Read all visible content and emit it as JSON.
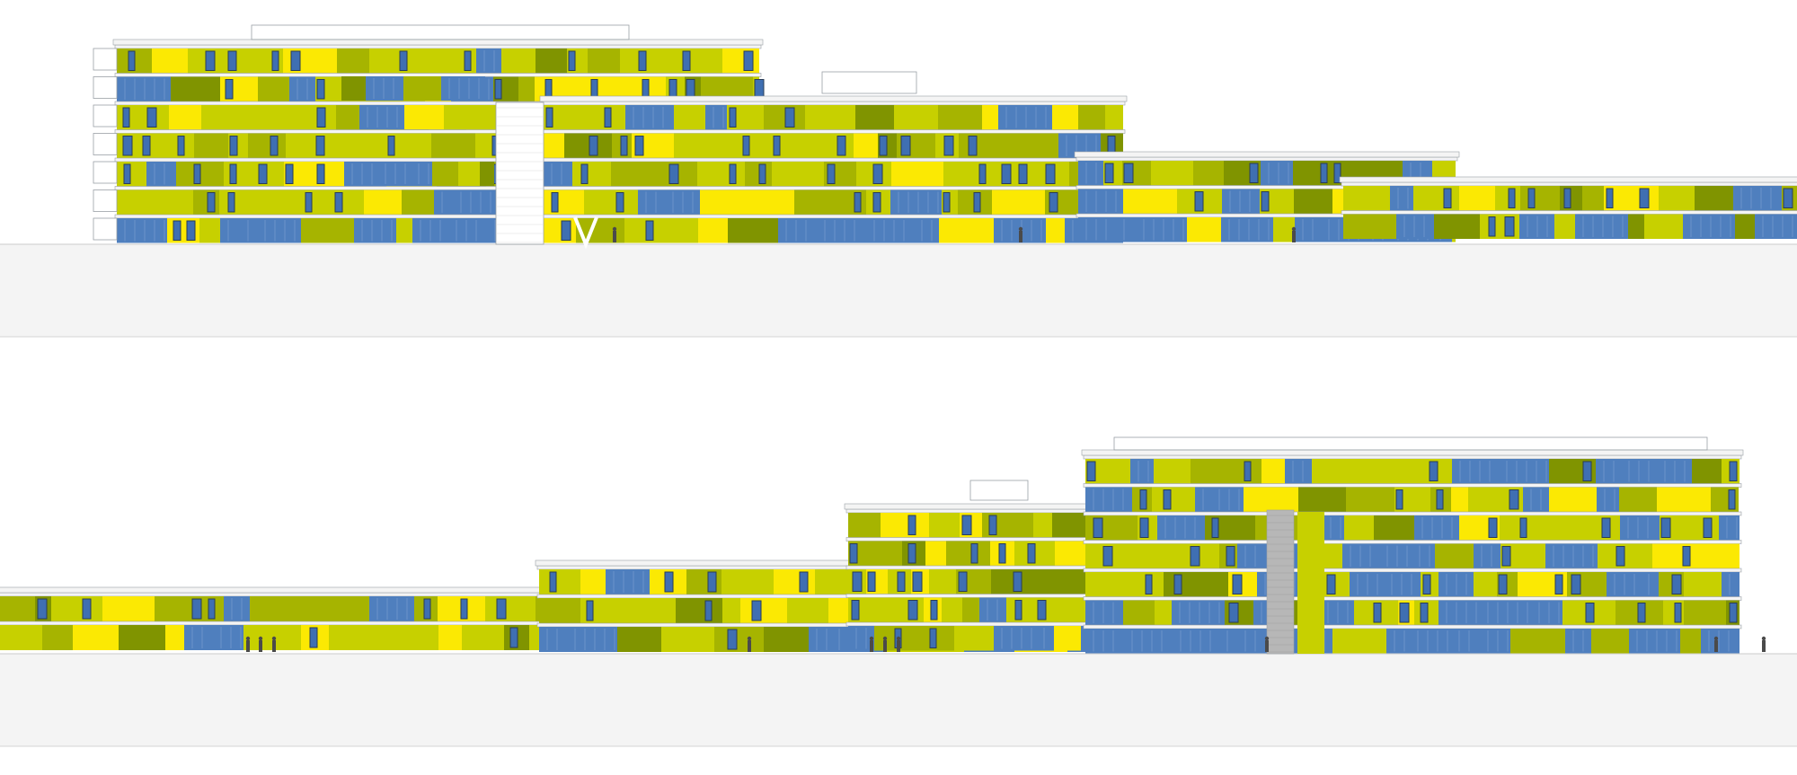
{
  "palette": {
    "yellow": "#fbe903",
    "lime": "#c7d000",
    "olive": "#a6b400",
    "dark_olive": "#809400",
    "glass": "#4f7fbe",
    "window": "#3f6fb2",
    "window_frame": "#2a3c55",
    "slab": "#f4f4f4",
    "line": "#9aa0a6",
    "ground": "#f4f4f4",
    "ground_line": "#d4d4d4",
    "core": "#b7b7b7",
    "figure": "#4a4a4a"
  },
  "elevations": [
    {
      "id": "upper",
      "storeys": 7
    },
    {
      "id": "lower",
      "storeys": 7
    }
  ]
}
